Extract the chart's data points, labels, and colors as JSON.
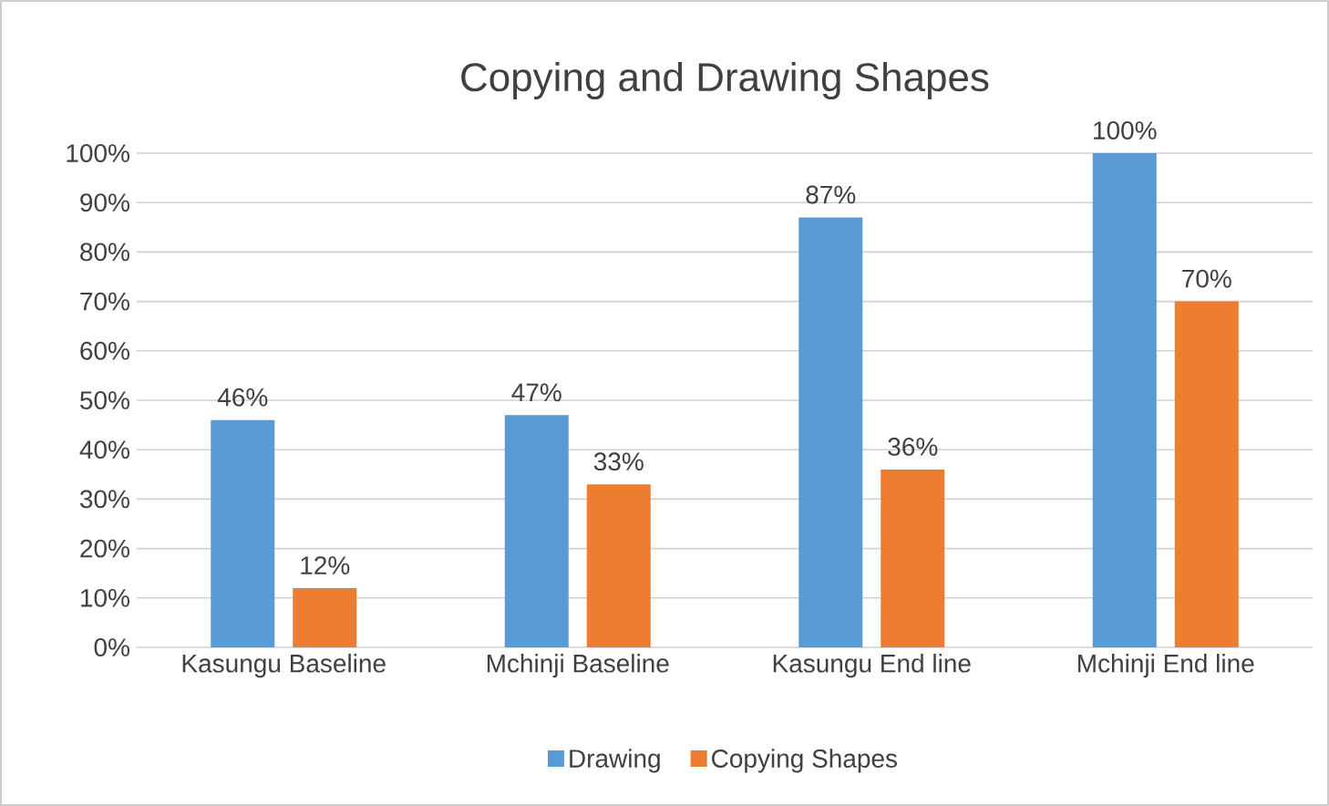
{
  "chart_data": {
    "type": "bar",
    "title": "Copying and Drawing Shapes",
    "categories": [
      "Kasungu Baseline",
      "Mchinji Baseline",
      "Kasungu End line",
      "Mchinji End line"
    ],
    "series": [
      {
        "name": "Drawing",
        "color": "#5b9bd5",
        "values": [
          46,
          47,
          87,
          100
        ],
        "value_labels": [
          "46%",
          "47%",
          "87%",
          "100%"
        ]
      },
      {
        "name": "Copying Shapes",
        "color": "#ed7d31",
        "values": [
          12,
          33,
          36,
          70
        ],
        "value_labels": [
          "12%",
          "33%",
          "36%",
          "70%"
        ]
      }
    ],
    "ylim": [
      0,
      100
    ],
    "yticks": [
      {
        "value": 0,
        "label": "0%"
      },
      {
        "value": 10,
        "label": "10%"
      },
      {
        "value": 20,
        "label": "20%"
      },
      {
        "value": 30,
        "label": "30%"
      },
      {
        "value": 40,
        "label": "40%"
      },
      {
        "value": 50,
        "label": "50%"
      },
      {
        "value": 60,
        "label": "60%"
      },
      {
        "value": 70,
        "label": "70%"
      },
      {
        "value": 80,
        "label": "80%"
      },
      {
        "value": 90,
        "label": "90%"
      },
      {
        "value": 100,
        "label": "100%"
      }
    ],
    "grid": "y",
    "legend": "bottom"
  }
}
